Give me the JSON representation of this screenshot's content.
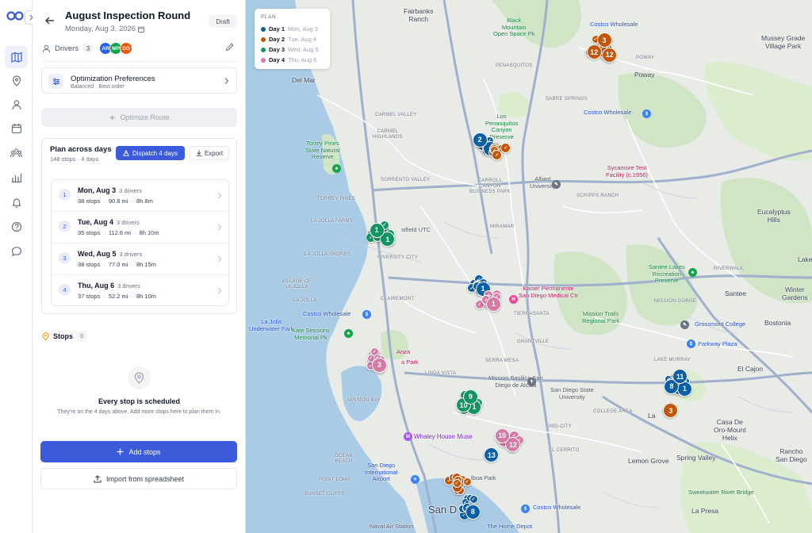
{
  "rail": {
    "items": [
      {
        "name": "map-icon",
        "active": true
      },
      {
        "name": "location-pin-icon"
      },
      {
        "name": "person-icon"
      },
      {
        "name": "calendar-icon"
      },
      {
        "name": "team-icon"
      },
      {
        "name": "bar-chart-icon"
      },
      {
        "name": "bell-icon"
      },
      {
        "name": "help-icon"
      },
      {
        "name": "chat-icon"
      }
    ]
  },
  "header": {
    "title": "August Inspection Round",
    "date": "Monday, Aug 3, 2026",
    "status": "Draft"
  },
  "drivers": {
    "label": "Drivers",
    "count": "3",
    "avatars": [
      {
        "initials": "AR",
        "color": "#2563eb"
      },
      {
        "initials": "MP",
        "color": "#16a34a"
      },
      {
        "initials": "DO",
        "color": "#ea580c"
      }
    ]
  },
  "optimization": {
    "title": "Optimization Preferences",
    "subtitle": "Balanced · Best order"
  },
  "optimize_button": "Optimize Route",
  "plan": {
    "title": "Plan across days",
    "subtitle": "148 stops · 4 days",
    "dispatch_label": "Dispatch 4 days",
    "export_label": "Export",
    "days": [
      {
        "num": "1",
        "name": "Mon, Aug 3",
        "drivers": "3 drivers",
        "stops": "38 stops",
        "distance": "90.8 mi",
        "duration": "8h 8m"
      },
      {
        "num": "2",
        "name": "Tue, Aug 4",
        "drivers": "3 drivers",
        "stops": "35 stops",
        "distance": "112.6 mi",
        "duration": "8h 10m"
      },
      {
        "num": "3",
        "name": "Wed, Aug 5",
        "drivers": "3 drivers",
        "stops": "38 stops",
        "distance": "77.0 mi",
        "duration": "8h 15m"
      },
      {
        "num": "4",
        "name": "Thu, Aug 6",
        "drivers": "3 drivers",
        "stops": "37 stops",
        "distance": "52.2 mi",
        "duration": "8h 10m"
      }
    ]
  },
  "stops": {
    "label": "Stops",
    "count": "0",
    "empty_title": "Every stop is scheduled",
    "empty_subtitle": "They're on the 4 days above. Add more stops here to plan them in."
  },
  "add_stops_label": "Add stops",
  "import_label": "Import from spreadsheet",
  "map": {
    "legend": {
      "title": "PLAN",
      "rows": [
        {
          "name": "Day 1",
          "date": "Mon, Aug 3",
          "color": "#0b5fa5"
        },
        {
          "name": "Day 2",
          "date": "Tue, Aug 4",
          "color": "#c2570c"
        },
        {
          "name": "Day 3",
          "date": "Wed, Aug 5",
          "color": "#129463"
        },
        {
          "name": "Day 4",
          "date": "Thu, Aug 6",
          "color": "#d47aa4"
        }
      ]
    },
    "labels": {
      "fairbanks": "Fairbanks\nRanch",
      "black_mountain": "Black\nMountain\nOpen Space Pk",
      "costco_top": "Costco Wholesale",
      "mussey": "Mussey Grade\nVillage Park",
      "poway_upper": "POWAY",
      "poway": "Poway",
      "del_mar": "Del Mar",
      "penasquitos": "PENASQUITOS",
      "sabre": "SABRE SPRINGS",
      "costco_mid": "Costco Wholesale",
      "carmel_valley": "CARMEL VALLEY",
      "carmel_heights": "CARMEL\nHIGHLANDS",
      "los_penasquitos": "Los\nPenasquitos\nCanyon\nPreserve",
      "torrey": "Torrey Pines\nState Natural\nReserve",
      "sorrento": "SORRENTO VALLEY",
      "carroll": "CARROLL\nCANYON\nBUSINESS PARK",
      "alliant": "Alliant\nUniversity",
      "scripps": "SCRIPPS RANCH",
      "sycamore": "Sycamore Test\nFacility (c.1956)",
      "eucalyptus": "Eucalyptus\nHills",
      "torrey_pines": "TORREY PINES",
      "jolla_farms": "LA JOLLA FARMS",
      "westfield": "stfield UTC",
      "miramar": "MIRAMAR",
      "jolla_shores": "LA JOLLA SHORES",
      "university_city": "NIVERSITY CITY",
      "santee_lakes": "Santee Lakes\nRecreation\nPreserve",
      "riverwalk": "RIVERWALK",
      "lakeside": "Lake",
      "jolla_village": "VILLAGE OF\nLA JOLLA",
      "kaiser": "Kaiser Permanente\nSan Diego Medical Ctr",
      "santee": "Santee",
      "winter": "Winter\nGardens",
      "mission_trails": "Mission Trails\nRegional Park",
      "grossmont": "Grossmont College",
      "bostonia": "Bostonia",
      "la_jolla": "LA JOLLA",
      "clairemont": "CLAIREMONT",
      "costco_left": "Costco Wholesale",
      "tierrasanta": "TIERRASANTA",
      "mission_gorge": "MISSION GORGE",
      "jolla_park": "La Jolla\nUnderwater Park",
      "kate": "Kate Sessions\nMemorial Pk",
      "parkway": "Parkway Plaza",
      "lake_murray": "LAKE MURRAY",
      "el_cajon": "El Cajon",
      "serra_mesa": "SERRA MESA",
      "mission_basilica": "Mission Basilica San\nDiego de Alcala",
      "sdsu": "San Diego State\nUniversity",
      "college_area": "COLLEGE AREA",
      "linda_vista": "LINDA VISTA",
      "mission_bay": "MISSION BAY",
      "ocean_beach": "OCEAN\nBEACH",
      "whaley": "Whaley House Muse",
      "mid_city": "MID-CITY",
      "lemon_grove": "Lemon Grove",
      "spring_valley": "Spring Valley",
      "casa_de_oro": "Casa De\nOro-Mount\nHelix",
      "rancho": "Rancho\nSan Diego",
      "airport": "San Diego\nInternational\nAirport",
      "balboa": "lboa Park",
      "sunset": "SUNSET CLIFFS",
      "point_loma": "POINT LOMA",
      "naval": "Naval Air Station",
      "san_d": "San D",
      "costco_bottom": "Costco Wholesale",
      "home_depot": "The Home Depot",
      "sweetwater": "Sweetwater River Bridge",
      "la_presa": "La Presa",
      "el_cerrito": "EL CERRITO",
      "anza": "Anza",
      "a_park": "a Park",
      "la_mesa": "La",
      "grantville": "GRANTVILLE"
    },
    "clusters": [
      {
        "day": 1,
        "center": [
          612,
          182
        ],
        "count": 16,
        "spread": 30,
        "numbers": [
          "8",
          "2"
        ]
      },
      {
        "day": 2,
        "center": [
          628,
          188
        ],
        "count": 10,
        "spread": 22,
        "numbers": []
      },
      {
        "day": 2,
        "center": [
          760,
          62
        ],
        "count": 18,
        "spread": 38,
        "numbers": [
          "12",
          "12",
          "3"
        ]
      },
      {
        "day": 3,
        "center": [
          482,
          296
        ],
        "count": 16,
        "spread": 30,
        "numbers": [
          "1",
          "1"
        ]
      },
      {
        "day": 1,
        "center": [
          604,
          360
        ],
        "count": 12,
        "spread": 22,
        "numbers": [
          "1"
        ]
      },
      {
        "day": 4,
        "center": [
          616,
          378
        ],
        "count": 14,
        "spread": 28,
        "numbers": [
          "1"
        ]
      },
      {
        "day": 4,
        "center": [
          472,
          455
        ],
        "count": 14,
        "spread": 28,
        "numbers": [
          "3"
        ]
      },
      {
        "day": 3,
        "center": [
          592,
          508
        ],
        "count": 14,
        "spread": 26,
        "numbers": [
          "1",
          "10",
          "9"
        ]
      },
      {
        "day": 1,
        "center": [
          856,
          484
        ],
        "count": 16,
        "spread": 32,
        "numbers": [
          "1",
          "8",
          "11"
        ]
      },
      {
        "day": 2,
        "center": [
          844,
          516
        ],
        "count": 3,
        "spread": 8,
        "numbers": [
          "3"
        ]
      },
      {
        "day": 4,
        "center": [
          640,
          555
        ],
        "count": 16,
        "spread": 30,
        "numbers": [
          "12",
          "10"
        ]
      },
      {
        "day": 1,
        "center": [
          618,
          572
        ],
        "count": 4,
        "spread": 8,
        "numbers": [
          "13"
        ]
      },
      {
        "day": 2,
        "center": [
          576,
          610
        ],
        "count": 16,
        "spread": 30,
        "numbers": []
      },
      {
        "day": 1,
        "center": [
          590,
          640
        ],
        "count": 16,
        "spread": 28,
        "numbers": [
          "8"
        ]
      }
    ]
  }
}
